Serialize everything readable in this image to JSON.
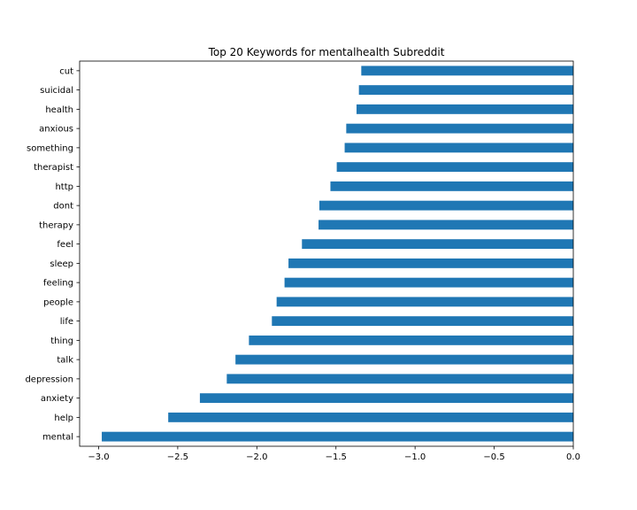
{
  "chart_data": {
    "type": "bar",
    "orientation": "horizontal",
    "title": "Top 20 Keywords for mentalhealth Subreddit",
    "xlabel": "",
    "ylabel": "",
    "xlim": [
      -3.12,
      0.0
    ],
    "xticks": [
      -3.0,
      -2.5,
      -2.0,
      -1.5,
      -1.0,
      -0.5,
      0.0
    ],
    "xtick_labels": [
      "−3.0",
      "−2.5",
      "−2.0",
      "−1.5",
      "−1.0",
      "−0.5",
      "0.0"
    ],
    "grid": false,
    "bar_color": "#1f77b4",
    "categories": [
      "cut",
      "suicidal",
      "health",
      "anxious",
      "something",
      "therapist",
      "http",
      "dont",
      "therapy",
      "feel",
      "sleep",
      "feeling",
      "people",
      "life",
      "thing",
      "talk",
      "depression",
      "anxiety",
      "help",
      "mental"
    ],
    "values": [
      -1.34,
      -1.355,
      -1.37,
      -1.435,
      -1.445,
      -1.495,
      -1.535,
      -1.605,
      -1.61,
      -1.715,
      -1.8,
      -1.825,
      -1.875,
      -1.905,
      -2.05,
      -2.135,
      -2.19,
      -2.36,
      -2.56,
      -2.98
    ]
  }
}
